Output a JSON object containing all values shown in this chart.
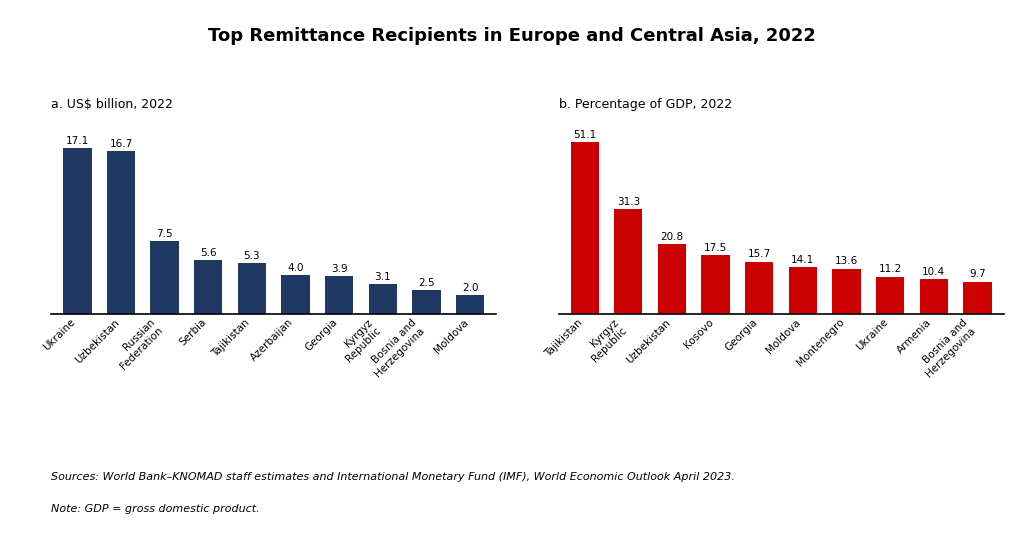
{
  "title": "Top Remittance Recipients in Europe and Central Asia, 2022",
  "title_fontsize": 13,
  "subtitle_a": "a. US$ billion, 2022",
  "subtitle_b": "b. Percentage of GDP, 2022",
  "panel_a": {
    "categories": [
      "Ukraine",
      "Uzbekistan",
      "Russian\nFederation",
      "Serbia",
      "Tajikistan",
      "Azerbaijan",
      "Georgia",
      "Kyrgyz\nRepublic",
      "Bosnia and\nHerzegovina",
      "Moldova"
    ],
    "values": [
      17.1,
      16.7,
      7.5,
      5.6,
      5.3,
      4.0,
      3.9,
      3.1,
      2.5,
      2.0
    ],
    "bar_color": "#1f3864",
    "ylim": [
      0,
      20
    ]
  },
  "panel_b": {
    "categories": [
      "Tajikistan",
      "Kyrgyz\nRepublic",
      "Uzbekistan",
      "Kosovo",
      "Georgia",
      "Moldova",
      "Montenegro",
      "Ukraine",
      "Armenia",
      "Bosnia and\nHerzegovina"
    ],
    "values": [
      51.1,
      31.3,
      20.8,
      17.5,
      15.7,
      14.1,
      13.6,
      11.2,
      10.4,
      9.7
    ],
    "bar_color": "#cc0000",
    "ylim": [
      0,
      58
    ]
  },
  "source_line1": "Sources: World Bank–KNOMAD staff estimates and International Monetary Fund (IMF), World Economic Outlook April 2023.",
  "source_line2": "Note: GDP = gross domestic product.",
  "background_color": "#ffffff"
}
